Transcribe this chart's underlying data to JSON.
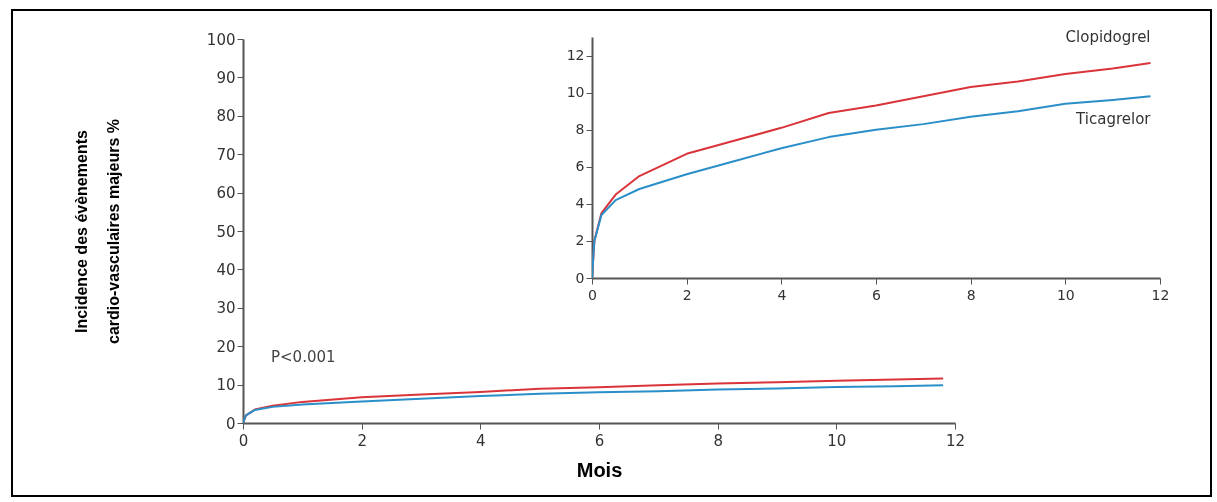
{
  "chart_data": [
    {
      "type": "line",
      "xlabel": "Mois",
      "ylabel": "Incidence des évènements cardio-vasculaires majeurs %",
      "x": [
        0,
        0.05,
        0.2,
        0.5,
        1,
        2,
        3,
        4,
        5,
        6,
        7,
        8,
        9,
        10,
        11,
        11.8
      ],
      "series": [
        {
          "color": "#d9343a",
          "values": [
            0,
            2,
            3.5,
            4.5,
            5.5,
            6.7,
            7.4,
            8.1,
            8.9,
            9.3,
            9.8,
            10.3,
            10.6,
            11,
            11.3,
            11.6
          ]
        },
        {
          "color": "#2a8fc9",
          "values": [
            0,
            2,
            3.4,
            4.2,
            4.8,
            5.6,
            6.3,
            7,
            7.6,
            8,
            8.3,
            8.7,
            9,
            9.4,
            9.6,
            9.8
          ]
        }
      ],
      "xlim": [
        0,
        12
      ],
      "xticks": [
        0,
        2,
        4,
        6,
        8,
        10,
        12
      ],
      "ylim": [
        0,
        100
      ],
      "yticks": [
        0,
        10,
        20,
        30,
        40,
        50,
        60,
        70,
        80,
        90,
        100
      ],
      "annotations": [
        "P<0.001"
      ]
    },
    {
      "type": "line",
      "x": [
        0,
        0.05,
        0.2,
        0.5,
        1,
        2,
        3,
        4,
        5,
        6,
        7,
        8,
        9,
        10,
        11,
        11.8
      ],
      "series": [
        {
          "name": "Clopidogrel",
          "color": "#d9343a",
          "values": [
            0,
            2,
            3.5,
            4.5,
            5.5,
            6.7,
            7.4,
            8.1,
            8.9,
            9.3,
            9.8,
            10.3,
            10.6,
            11,
            11.3,
            11.6
          ]
        },
        {
          "name": "Ticagrelor",
          "color": "#2a8fc9",
          "values": [
            0,
            2,
            3.4,
            4.2,
            4.8,
            5.6,
            6.3,
            7,
            7.6,
            8,
            8.3,
            8.7,
            9,
            9.4,
            9.6,
            9.8
          ]
        }
      ],
      "xlim": [
        0,
        12
      ],
      "xticks": [
        0,
        2,
        4,
        6,
        8,
        10,
        12
      ],
      "ylim": [
        0,
        13
      ],
      "yticks": [
        0,
        2,
        4,
        6,
        8,
        10,
        12
      ]
    }
  ]
}
